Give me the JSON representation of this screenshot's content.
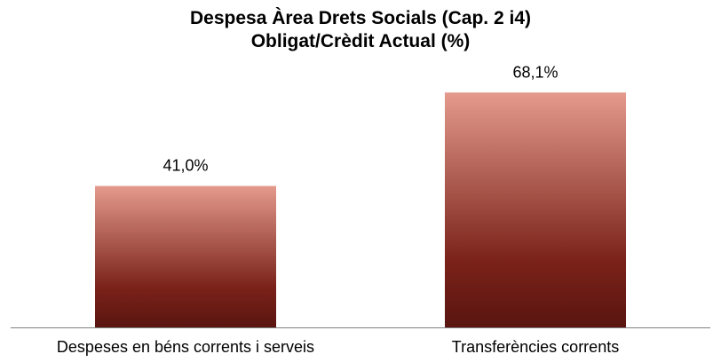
{
  "chart_data": {
    "type": "bar",
    "title": [
      "Despesa Àrea Drets Socials (Cap. 2 i4)",
      "Obligat/Crèdit Actual (%)"
    ],
    "xlabel": "",
    "ylabel": "",
    "categories": [
      "Despeses en béns corrents i serveis",
      "Transferències corrents"
    ],
    "series": [
      {
        "values": [
          41.0,
          68.1
        ],
        "data_labels": [
          "41,0%",
          "68,1%"
        ]
      }
    ],
    "ylim": [
      0,
      80
    ],
    "grid": false,
    "legend": "none",
    "bar_colors": {
      "top": "#e49a8c",
      "mid": "#7a2219",
      "bottom": "#5a1510"
    },
    "axis_color": "#808080"
  }
}
